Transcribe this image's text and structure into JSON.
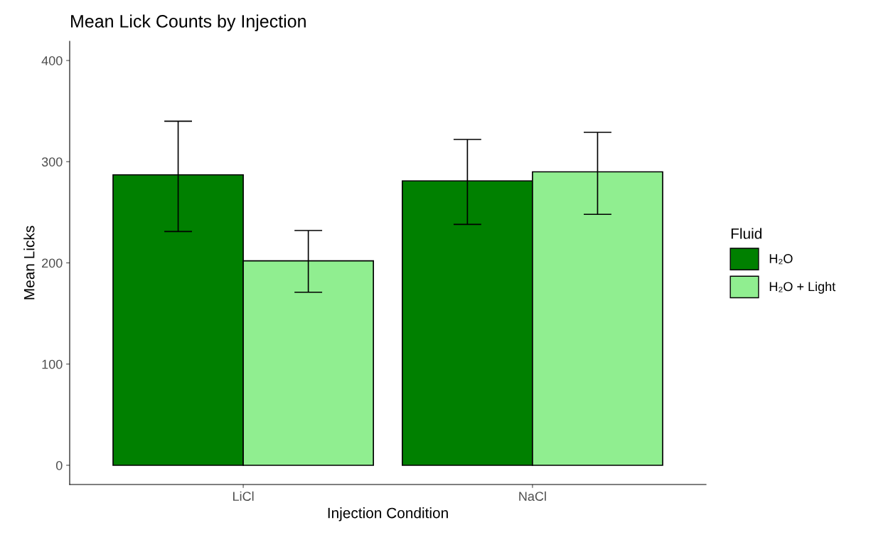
{
  "chart_data": {
    "type": "bar",
    "title": "Mean Lick Counts by Injection",
    "xlabel": "Injection Condition",
    "ylabel": "Mean Licks",
    "legend_title": "Fluid",
    "categories": [
      "LiCl",
      "NaCl"
    ],
    "series": [
      {
        "name": "H₂O",
        "color": "#008000",
        "values": [
          287,
          281
        ],
        "errors": [
          [
            231,
            340
          ],
          [
            238,
            322
          ]
        ]
      },
      {
        "name": "H₂O + Light",
        "color": "#90ee90",
        "values": [
          202,
          290
        ],
        "errors": [
          [
            171,
            232
          ],
          [
            248,
            329
          ]
        ]
      }
    ],
    "ylim": [
      -19,
      419
    ],
    "yticks": [
      0,
      100,
      200,
      300,
      400
    ],
    "grid": false,
    "legend": "right"
  }
}
